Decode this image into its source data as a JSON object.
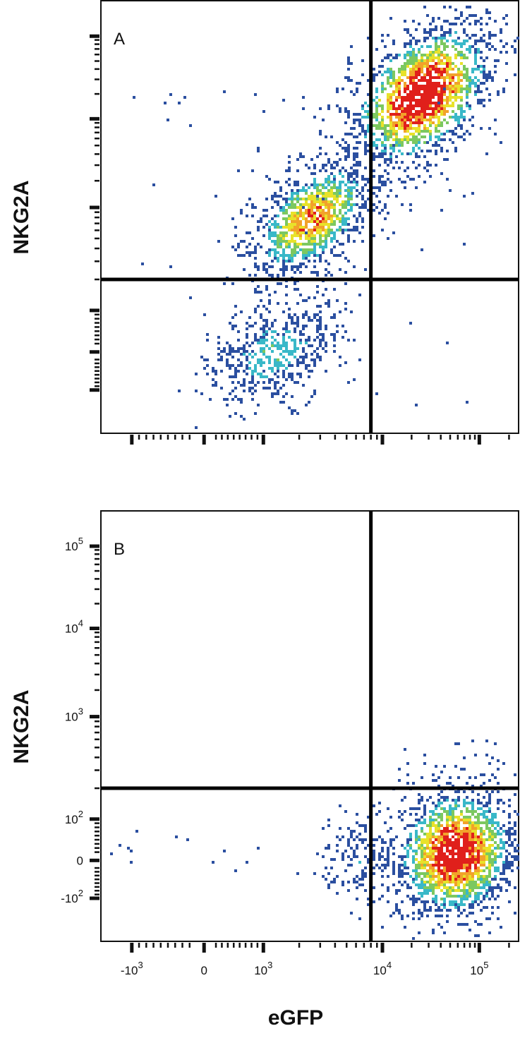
{
  "chart_data": [
    {
      "type": "scatter",
      "panel": "A",
      "xlabel": "",
      "ylabel": "NKG2A",
      "x_scale": "biexponential",
      "y_scale": "biexponential",
      "xlim": [
        -3000,
        250000
      ],
      "ylim": [
        -2000,
        250000
      ],
      "x_ticks": [],
      "y_ticks": [],
      "quadrant_gate": {
        "x": 8000,
        "y": 200
      },
      "populations": [
        {
          "name": "",
          "center": [
            25000,
            20000
          ],
          "spread": "dense",
          "peak_color": "red"
        },
        {
          "name": "",
          "center": [
            2500,
            800
          ],
          "spread": "moderate",
          "peak_color": "green"
        },
        {
          "name": "",
          "center": [
            1200,
            0
          ],
          "spread": "sparse",
          "peak_color": "blue"
        }
      ]
    },
    {
      "type": "scatter",
      "panel": "B",
      "xlabel": "eGFP",
      "ylabel": "NKG2A",
      "x_scale": "biexponential",
      "y_scale": "biexponential",
      "xlim": [
        -3000,
        250000
      ],
      "ylim": [
        -2000,
        250000
      ],
      "x_ticks": [
        {
          "value": -1000,
          "base": "-10",
          "exp": "3"
        },
        {
          "value": 0,
          "base": "0",
          "exp": ""
        },
        {
          "value": 1000,
          "base": "10",
          "exp": "3"
        },
        {
          "value": 10000,
          "base": "10",
          "exp": "4"
        },
        {
          "value": 100000,
          "base": "10",
          "exp": "5"
        }
      ],
      "y_ticks": [
        {
          "value": 100000,
          "base": "10",
          "exp": "5"
        },
        {
          "value": 10000,
          "base": "10",
          "exp": "4"
        },
        {
          "value": 1000,
          "base": "10",
          "exp": "3"
        },
        {
          "value": 100,
          "base": "10",
          "exp": "2"
        },
        {
          "value": 0,
          "base": "0",
          "exp": ""
        },
        {
          "value": -100,
          "base": "-10",
          "exp": "2"
        }
      ],
      "quadrant_gate": {
        "x": 8000,
        "y": 200
      },
      "populations": [
        {
          "name": "",
          "center": [
            55000,
            20
          ],
          "spread": "dense",
          "peak_color": "red"
        }
      ]
    }
  ],
  "panel_letters": [
    "A",
    "B"
  ],
  "y_axis_title_top": "NKG2A",
  "y_axis_title_bottom": "NKG2A",
  "x_axis_title": "eGFP",
  "colors": {
    "axis": "#111111",
    "gate": "#000000",
    "low": "#2b4fa0",
    "mid": "#39b8c8",
    "high": "#e8e22a",
    "peak": "#e0201b"
  }
}
